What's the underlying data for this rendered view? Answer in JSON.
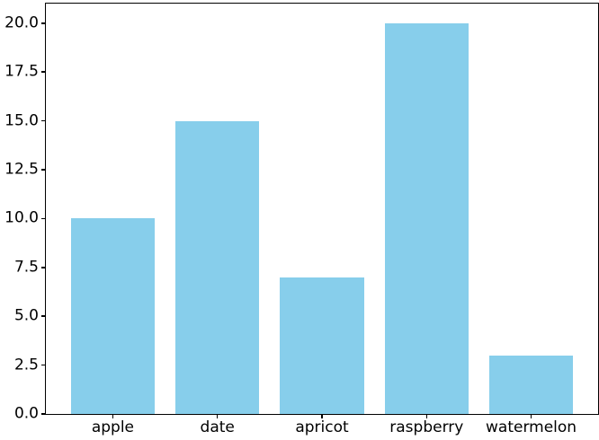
{
  "figure": {
    "background": "#ffffff",
    "spine_color": "#000000",
    "text_color": "#000000"
  },
  "chart_data": {
    "type": "bar",
    "title": "",
    "xlabel": "",
    "ylabel": "",
    "categories": [
      "apple",
      "date",
      "apricot",
      "raspberry",
      "watermelon"
    ],
    "values": [
      10,
      15,
      7,
      20,
      3
    ],
    "bar_color": "#87CEEB",
    "bar_width_fraction": 0.8,
    "ylim": [
      0,
      21
    ],
    "yticks": [
      0.0,
      2.5,
      5.0,
      7.5,
      10.0,
      12.5,
      15.0,
      17.5,
      20.0
    ],
    "ytick_labels": [
      "0.0",
      "2.5",
      "5.0",
      "7.5",
      "10.0",
      "12.5",
      "15.0",
      "17.5",
      "20.0"
    ],
    "grid": false,
    "legend": null
  }
}
